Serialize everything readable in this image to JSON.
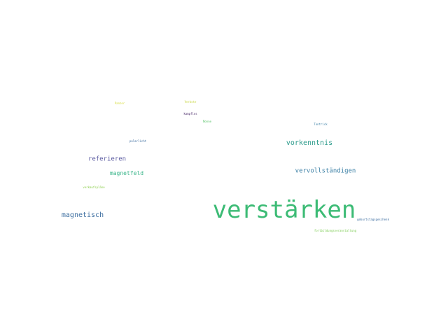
{
  "words": [
    {
      "text": "verstärken",
      "color": "#3cbb75"
    },
    {
      "text": "vorkenntnis",
      "color": "#2a9a8a"
    },
    {
      "text": "vervollständigen",
      "color": "#3a7fa5"
    },
    {
      "text": "referieren",
      "color": "#5a5aa0"
    },
    {
      "text": "magnetfeld",
      "color": "#3ab58a"
    },
    {
      "text": "magnetisch",
      "color": "#3d6ea0"
    },
    {
      "text": "kampflos",
      "color": "#4a2a6a"
    },
    {
      "text": "Tontrick",
      "color": "#3a7fa5"
    },
    {
      "text": "polarlicht",
      "color": "#3d6ea0"
    },
    {
      "text": "Nonne",
      "color": "#5ac46a"
    },
    {
      "text": "Verbote",
      "color": "#c8d640"
    },
    {
      "text": "Panzer",
      "color": "#d6dc3a"
    },
    {
      "text": "verkaufspläne",
      "color": "#8acd4a"
    },
    {
      "text": "geburtstagsgeschenk",
      "color": "#3d6ea0"
    },
    {
      "text": "fortbildungsveranstaltung",
      "color": "#7acb50"
    }
  ]
}
